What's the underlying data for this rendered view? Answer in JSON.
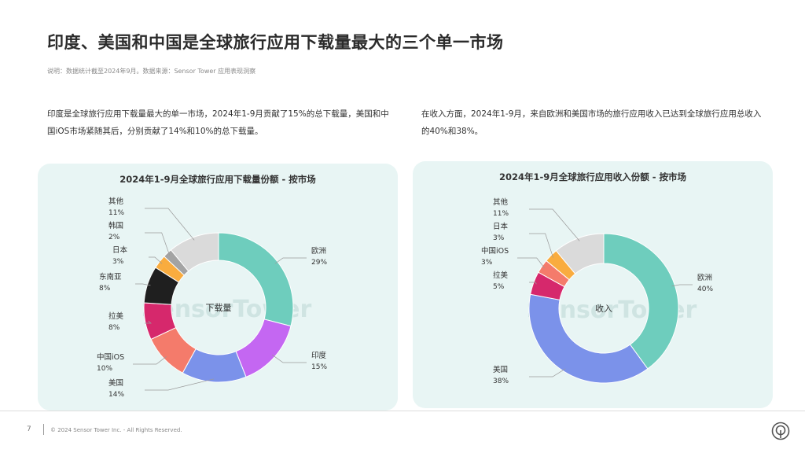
{
  "title": "印度、美国和中国是全球旅行应用下载量最大的三个单一市场",
  "note": "说明：数据统计截至2024年9月。数据来源：Sensor Tower 应用表现洞察",
  "paragraph_left": "印度是全球旅行应用下载量最大的单一市场，2024年1-9月贡献了15%的总下载量，美国和中国iOS市场紧随其后，分别贡献了14%和10%的总下载量。",
  "paragraph_right": "在收入方面，2024年1-9月，来自欧洲和美国市场的旅行应用收入已达到全球旅行应用总收入的40%和38%。",
  "footer": {
    "page_number": "7",
    "copyright": "© 2024 Sensor Tower Inc. - All Rights Reserved.",
    "logo_icon": "sensor-tower-logo-icon"
  },
  "watermark": "SensorTower",
  "chart_data": [
    {
      "type": "pie",
      "donut": true,
      "title": "2024年1-9月全球旅行应用下载量份额 - 按市场",
      "center_label": "下载量",
      "slices": [
        {
          "label": "欧洲",
          "value": 29,
          "value_label": "29%",
          "color": "#6ecdbd"
        },
        {
          "label": "印度",
          "value": 15,
          "value_label": "15%",
          "color": "#c467f2"
        },
        {
          "label": "美国",
          "value": 14,
          "value_label": "14%",
          "color": "#7b92ea"
        },
        {
          "label": "中国iOS",
          "value": 10,
          "value_label": "10%",
          "color": "#f47b6b"
        },
        {
          "label": "拉美",
          "value": 8,
          "value_label": "8%",
          "color": "#d6286c"
        },
        {
          "label": "东南亚",
          "value": 8,
          "value_label": "8%",
          "color": "#1f1f1f"
        },
        {
          "label": "日本",
          "value": 3,
          "value_label": "3%",
          "color": "#f9ac3f"
        },
        {
          "label": "韩国",
          "value": 2,
          "value_label": "2%",
          "color": "#a3a3a3"
        },
        {
          "label": "其他",
          "value": 11,
          "value_label": "11%",
          "color": "#dadada"
        }
      ]
    },
    {
      "type": "pie",
      "donut": true,
      "title": "2024年1-9月全球旅行应用收入份额 - 按市场",
      "center_label": "收入",
      "slices": [
        {
          "label": "欧洲",
          "value": 40,
          "value_label": "40%",
          "color": "#6ecdbd"
        },
        {
          "label": "美国",
          "value": 38,
          "value_label": "38%",
          "color": "#7b92ea"
        },
        {
          "label": "拉美",
          "value": 5,
          "value_label": "5%",
          "color": "#d6286c"
        },
        {
          "label": "中国iOS",
          "value": 3,
          "value_label": "3%",
          "color": "#f47b6b"
        },
        {
          "label": "日本",
          "value": 3,
          "value_label": "3%",
          "color": "#f9ac3f"
        },
        {
          "label": "其他",
          "value": 11,
          "value_label": "11%",
          "color": "#dadada"
        }
      ]
    }
  ]
}
